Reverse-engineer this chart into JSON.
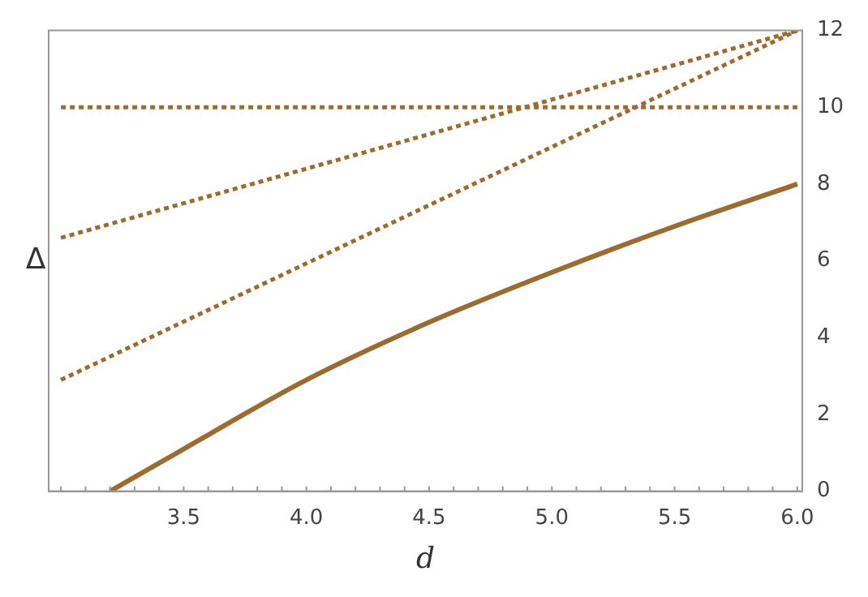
{
  "chart_data": {
    "type": "line",
    "xlabel": "d",
    "ylabel": "Δ",
    "xlim": [
      2.95,
      6.02
    ],
    "xticks": [
      3.5,
      {
        "value": 4,
        "label": "4.0"
      },
      4.5,
      {
        "value": 5,
        "label": "5.0"
      },
      5.5,
      {
        "value": 6,
        "label": "6.0"
      }
    ],
    "ylim": [
      0,
      12
    ],
    "yticks": [
      0,
      2,
      4,
      6,
      8,
      10,
      12
    ],
    "grid": false,
    "legend": false,
    "marker": "none",
    "series": [
      {
        "color": "#9c6b30",
        "line_style": "dotted",
        "x": [
          3.0,
          6.0
        ],
        "values": [
          10,
          10
        ]
      },
      {
        "color": "#9c6b30",
        "line_style": "dotted",
        "x": [
          3.0,
          6.0
        ],
        "values": [
          6.6,
          12
        ]
      },
      {
        "color": "#9c6b30",
        "line_style": "dotted",
        "x": [
          3.0,
          6.0
        ],
        "values": [
          2.9,
          12
        ]
      },
      {
        "color": "#9c6b30",
        "line_style": "solid",
        "x": [
          3.2,
          3.5,
          4.0,
          4.5,
          5.0,
          5.5,
          6.0
        ],
        "values": [
          0,
          1.1,
          2.9,
          4.4,
          5.7,
          6.9,
          8.0
        ]
      }
    ]
  }
}
